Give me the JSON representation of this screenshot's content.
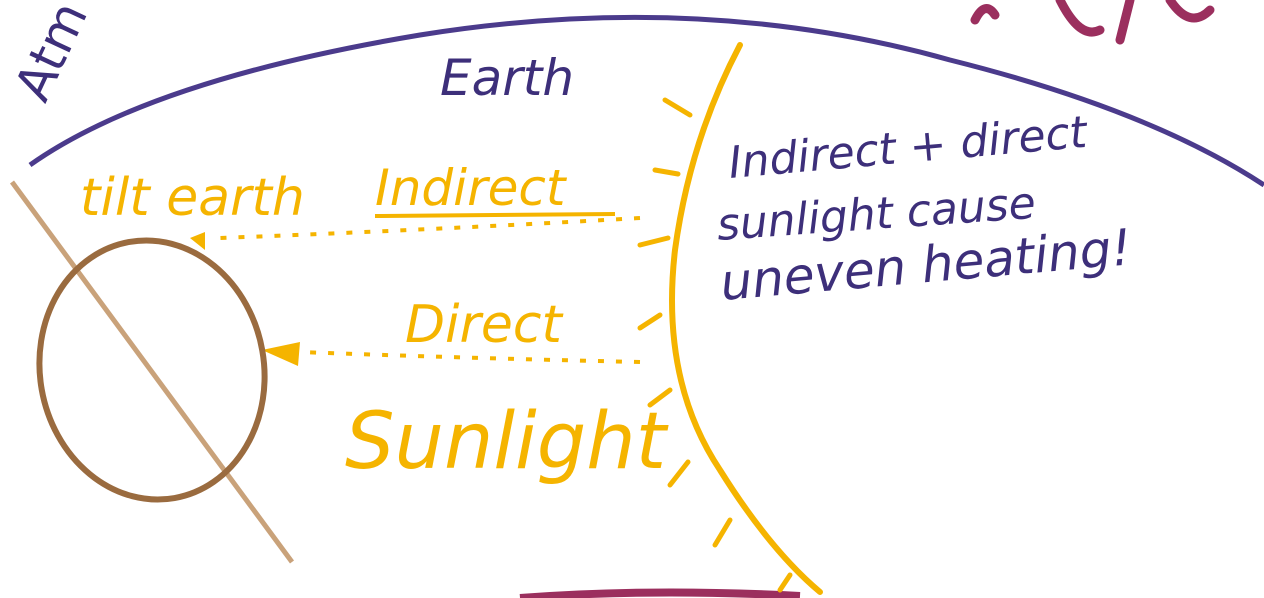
{
  "atmosphere_label": "Atm",
  "earth_label": "Earth",
  "tilt_label": "tilt earth",
  "indirect_label": "Indirect",
  "direct_label": "Direct",
  "sunlight_label": "Sunlight",
  "note": {
    "lines": [
      "Indirect + direct",
      "sunlight cause",
      "uneven heating!"
    ]
  }
}
